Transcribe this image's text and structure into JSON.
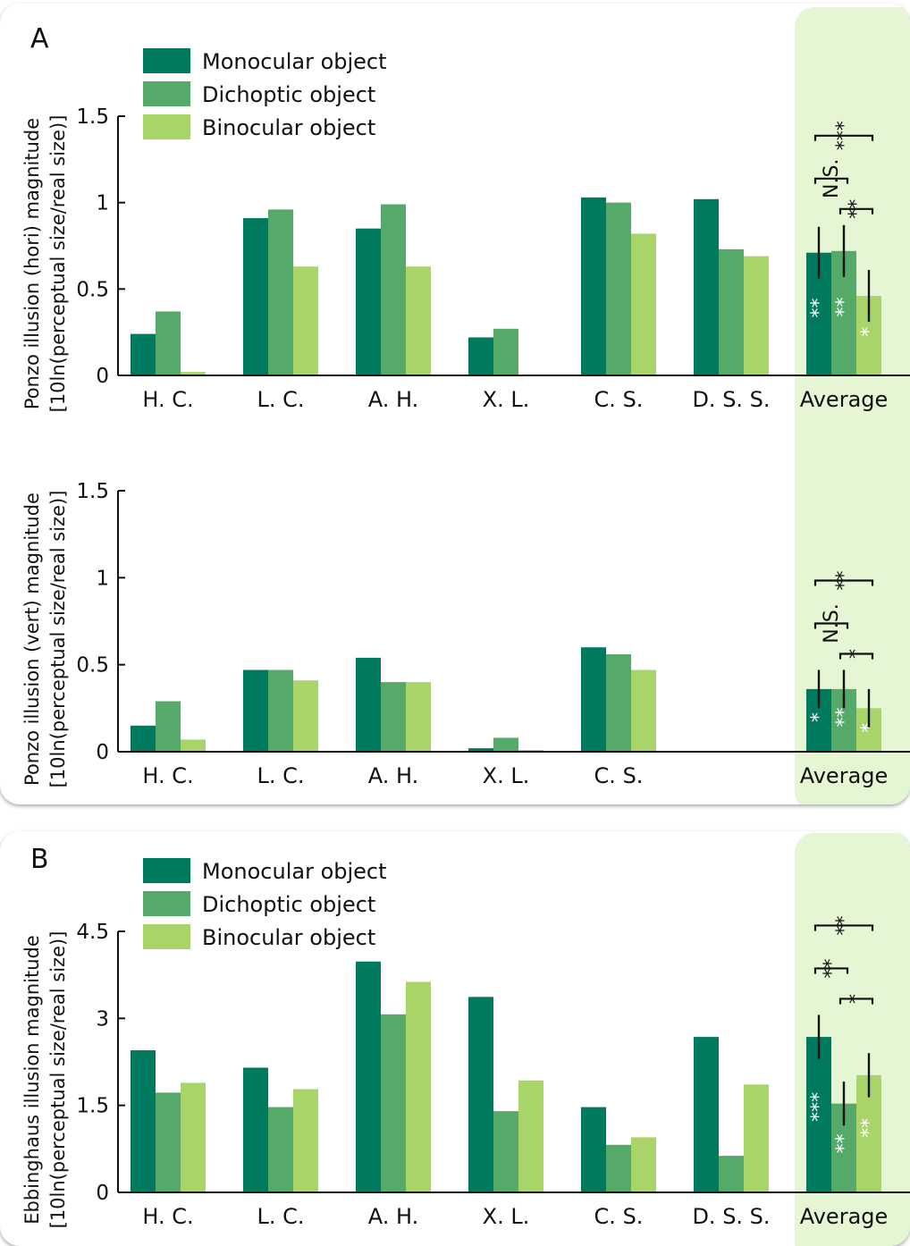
{
  "legend": [
    "Monocular object",
    "Dichoptic object",
    "Binocular object"
  ],
  "colors": {
    "monocular": "#007a5e",
    "dichoptic": "#55aa6a",
    "binocular": "#a8d46a",
    "average_band": "#e4f6d3"
  },
  "panel_labels": {
    "a": "A",
    "b": "B"
  },
  "chart_data": [
    {
      "type": "bar",
      "panel": "A",
      "ylabel_line1": "Ponzo illusion (hori) magnitude",
      "ylabel_line2": "[10ln(perceptual size/real size)]",
      "ylim": [
        0,
        1.5
      ],
      "yticks": [
        "0",
        "0.5",
        "1",
        "1.5"
      ],
      "categories": [
        "H. C.",
        "L. C.",
        "A. H.",
        "X. L.",
        "C. S.",
        "D. S. S.",
        "Average"
      ],
      "series": [
        {
          "name": "Monocular object",
          "values": [
            0.24,
            0.91,
            0.85,
            0.22,
            1.03,
            1.02,
            0.71
          ]
        },
        {
          "name": "Dichoptic object",
          "values": [
            0.37,
            0.96,
            0.99,
            0.27,
            1.0,
            0.73,
            0.72
          ]
        },
        {
          "name": "Binocular object",
          "values": [
            0.02,
            0.63,
            0.63,
            null,
            0.82,
            0.69,
            0.46
          ]
        }
      ],
      "average_error": [
        0.15,
        0.15,
        0.15
      ],
      "average_stars": [
        "**",
        "**",
        "*"
      ],
      "comparisons": [
        {
          "pair": "Monocular-Binocular",
          "label": "***"
        },
        {
          "pair": "Monocular-Dichoptic",
          "label": "N.S."
        },
        {
          "pair": "Dichoptic-Binocular",
          "label": "**"
        }
      ]
    },
    {
      "type": "bar",
      "panel": "A",
      "ylabel_line1": "Ponzo illusion (vert) magnitude",
      "ylabel_line2": "[10ln(perceptual size/real size)]",
      "ylim": [
        0,
        1.5
      ],
      "yticks": [
        "0",
        "0.5",
        "1",
        "1.5"
      ],
      "categories": [
        "H. C.",
        "L. C.",
        "A. H.",
        "X. L.",
        "C. S.",
        "",
        "Average"
      ],
      "series": [
        {
          "name": "Monocular object",
          "values": [
            0.15,
            0.47,
            0.54,
            0.02,
            0.6,
            null,
            0.36
          ]
        },
        {
          "name": "Dichoptic object",
          "values": [
            0.29,
            0.47,
            0.4,
            0.08,
            0.56,
            null,
            0.36
          ]
        },
        {
          "name": "Binocular object",
          "values": [
            0.07,
            0.41,
            0.4,
            0.01,
            0.47,
            null,
            0.25
          ]
        }
      ],
      "average_error": [
        0.11,
        0.11,
        0.11
      ],
      "average_stars": [
        "*",
        "**",
        "*"
      ],
      "comparisons": [
        {
          "pair": "Monocular-Binocular",
          "label": "**"
        },
        {
          "pair": "Monocular-Dichoptic",
          "label": "N.S."
        },
        {
          "pair": "Dichoptic-Binocular",
          "label": "*"
        }
      ]
    },
    {
      "type": "bar",
      "panel": "B",
      "ylabel_line1": "Ebbinghaus illusion magnitude",
      "ylabel_line2": "[10ln(perceptual size/real size)]",
      "ylim": [
        0,
        4.5
      ],
      "yticks": [
        "0",
        "1.5",
        "3",
        "4.5"
      ],
      "categories": [
        "H. C.",
        "L. C.",
        "A. H.",
        "X. L.",
        "C. S.",
        "D. S. S.",
        "Average"
      ],
      "series": [
        {
          "name": "Monocular object",
          "values": [
            2.45,
            2.15,
            3.98,
            3.37,
            1.47,
            2.68,
            2.68
          ]
        },
        {
          "name": "Dichoptic object",
          "values": [
            1.72,
            1.47,
            3.07,
            1.4,
            0.82,
            0.63,
            1.53
          ]
        },
        {
          "name": "Binocular object",
          "values": [
            1.89,
            1.78,
            3.63,
            1.93,
            0.95,
            1.86,
            2.02
          ]
        }
      ],
      "average_error": [
        0.38,
        0.38,
        0.38
      ],
      "average_stars": [
        "***",
        "**",
        "**"
      ],
      "comparisons": [
        {
          "pair": "Monocular-Binocular",
          "label": "**"
        },
        {
          "pair": "Monocular-Dichoptic",
          "label": "**"
        },
        {
          "pair": "Dichoptic-Binocular",
          "label": "*"
        }
      ]
    }
  ]
}
